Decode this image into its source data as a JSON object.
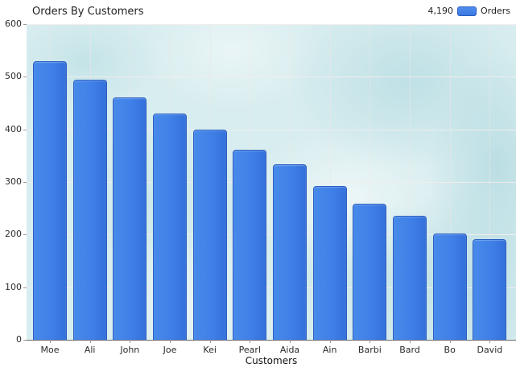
{
  "header": {
    "title": "Orders By Customers",
    "legend": {
      "total": "4,190",
      "series_label": "Orders"
    }
  },
  "axes": {
    "x_title": "Customers"
  },
  "colors": {
    "bar_fill": "#3f80e8",
    "bar_border": "#2b5ec2",
    "plot_background": "#d8edef",
    "gridline": "#f2eaea",
    "axis_line": "#6e6e6e",
    "text": "#2a2a2a"
  },
  "chart_data": {
    "type": "bar",
    "title": "Orders By Customers",
    "series_name": "Orders",
    "total_label": "4,190",
    "categories": [
      "Moe",
      "Ali",
      "John",
      "Joe",
      "Kei",
      "Pearl",
      "Aida",
      "Ain",
      "Barbi",
      "Bard",
      "Bo",
      "David"
    ],
    "values": [
      530,
      495,
      460,
      430,
      400,
      362,
      333,
      293,
      259,
      235,
      202,
      191
    ],
    "xlabel": "Customers",
    "ylabel": "",
    "ylim": [
      0,
      600
    ],
    "yticks": [
      0,
      100,
      200,
      300,
      400,
      500,
      600
    ],
    "grid": true,
    "legend_position": "top-right"
  }
}
